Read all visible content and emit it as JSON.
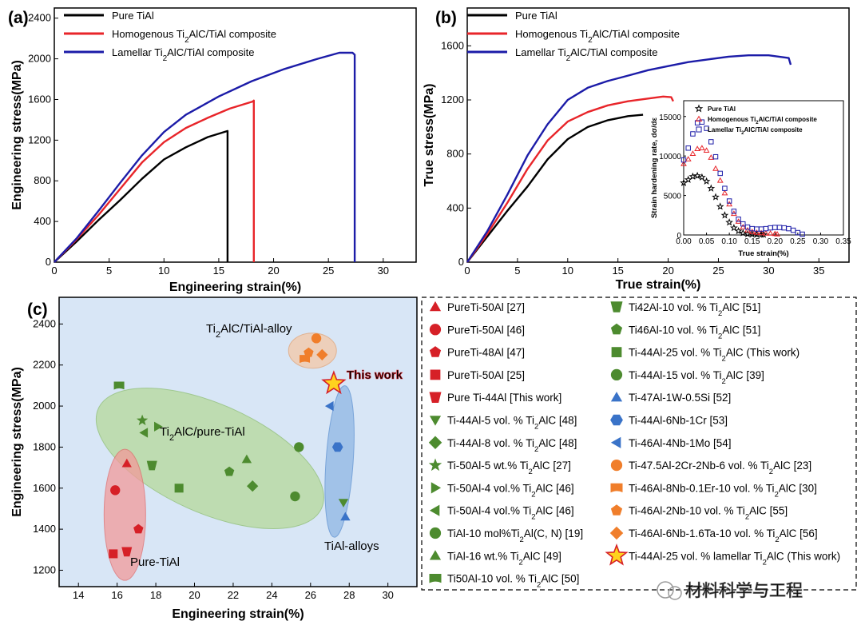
{
  "chart_data": [
    {
      "panel": "(a)",
      "type": "line",
      "xlabel": "Engineering strain(%)",
      "ylabel": "Engineering stress(MPa)",
      "xlim": [
        0,
        33
      ],
      "ylim": [
        0,
        2500
      ],
      "xticks": [
        "0",
        "5",
        "10",
        "15",
        "20",
        "25",
        "30"
      ],
      "yticks": [
        "0",
        "400",
        "800",
        "1200",
        "1600",
        "2000",
        "2400"
      ],
      "legend_position": "top-left",
      "series": [
        {
          "name": "Pure TiAl",
          "color": "#000000",
          "x": [
            0,
            2,
            4,
            6,
            8,
            10,
            12,
            14,
            15.8,
            15.8
          ],
          "y": [
            0,
            200,
            410,
            610,
            820,
            1010,
            1130,
            1230,
            1290,
            0
          ]
        },
        {
          "name": "Homogenous Ti₂AlC/TiAl composite",
          "color": "#e8252a",
          "x": [
            0,
            2,
            4,
            6,
            8,
            10,
            12,
            14,
            16,
            18.1,
            18.2,
            18.2
          ],
          "y": [
            0,
            220,
            460,
            720,
            980,
            1180,
            1320,
            1420,
            1510,
            1580,
            1590,
            0
          ]
        },
        {
          "name": "Lamellar Ti₂AlC/TiAl composite",
          "color": "#1c1ca8",
          "x": [
            0,
            2,
            4,
            6,
            8,
            10,
            12,
            15,
            18,
            21,
            24,
            26,
            27.2,
            27.4,
            27.4
          ],
          "y": [
            0,
            230,
            500,
            780,
            1050,
            1280,
            1450,
            1630,
            1780,
            1900,
            2000,
            2060,
            2060,
            2040,
            0
          ]
        }
      ]
    },
    {
      "panel": "(b)",
      "type": "line",
      "xlabel": "True strain(%)",
      "ylabel": "True stress(MPa)",
      "xlim": [
        0,
        38
      ],
      "ylim": [
        0,
        1880
      ],
      "xticks": [
        "0",
        "5",
        "10",
        "15",
        "20",
        "25",
        "30",
        "35"
      ],
      "yticks": [
        "0",
        "400",
        "800",
        "1200",
        "1600"
      ],
      "legend_position": "top-left",
      "series": [
        {
          "name": "Pure TiAl",
          "color": "#000000",
          "x": [
            0,
            2,
            4,
            6,
            8,
            10,
            12,
            14,
            16,
            17.5
          ],
          "y": [
            0,
            190,
            380,
            560,
            760,
            910,
            1000,
            1050,
            1080,
            1090
          ]
        },
        {
          "name": "Homogenous Ti₂AlC/TiAl composite",
          "color": "#e8252a",
          "x": [
            0,
            2,
            4,
            6,
            8,
            10,
            12,
            14,
            16,
            18,
            19.5,
            20.3,
            20.5
          ],
          "y": [
            0,
            210,
            440,
            690,
            900,
            1040,
            1110,
            1160,
            1190,
            1210,
            1225,
            1220,
            1190
          ]
        },
        {
          "name": "Lamellar Ti₂AlC/TiAl composite",
          "color": "#1c1ca8",
          "x": [
            0,
            2,
            4,
            6,
            8,
            10,
            12,
            14,
            16,
            18,
            20,
            22,
            24,
            26,
            28,
            30,
            32,
            32.2
          ],
          "y": [
            0,
            230,
            500,
            790,
            1020,
            1200,
            1290,
            1340,
            1380,
            1420,
            1450,
            1480,
            1500,
            1520,
            1530,
            1530,
            1510,
            1460
          ]
        }
      ],
      "inset": {
        "type": "scatter",
        "xlabel": "True strain(%)",
        "ylabel": "Strain hardening rate, dσ/dε",
        "xlim": [
          0,
          0.35
        ],
        "ylim": [
          0,
          17000
        ],
        "xticks": [
          "0.00",
          "0.05",
          "0.10",
          "0.15",
          "0.20",
          "0.25",
          "0.30",
          "0.35"
        ],
        "yticks": [
          "0",
          "5000",
          "10000",
          "15000"
        ],
        "series": [
          {
            "name": "Pure TiAl",
            "color": "#000000",
            "marker": "star",
            "x": [
              0.0,
              0.01,
              0.02,
              0.03,
              0.04,
              0.05,
              0.06,
              0.07,
              0.08,
              0.09,
              0.1,
              0.11,
              0.12,
              0.13,
              0.14,
              0.15,
              0.16,
              0.17,
              0.175
            ],
            "y": [
              6600,
              7000,
              7400,
              7500,
              7300,
              6800,
              5900,
              4800,
              3600,
              2500,
              1600,
              900,
              500,
              250,
              120,
              80,
              60,
              40,
              40
            ]
          },
          {
            "name": "Homogenous Ti₂AlC/TiAl composite",
            "color": "#e8252a",
            "marker": "triangle",
            "x": [
              0.0,
              0.01,
              0.02,
              0.03,
              0.04,
              0.05,
              0.06,
              0.07,
              0.08,
              0.09,
              0.1,
              0.11,
              0.12,
              0.13,
              0.14,
              0.15,
              0.16,
              0.17,
              0.18,
              0.19,
              0.2,
              0.205
            ],
            "y": [
              9000,
              9600,
              10300,
              10900,
              11000,
              10700,
              9800,
              8400,
              6900,
              5300,
              3900,
              2700,
              1700,
              1000,
              600,
              400,
              300,
              250,
              200,
              200,
              150,
              100
            ]
          },
          {
            "name": "Lamellar Ti₂AlC/TiAl composite",
            "color": "#1c1ca8",
            "marker": "square",
            "x": [
              0.0,
              0.01,
              0.02,
              0.03,
              0.04,
              0.05,
              0.06,
              0.07,
              0.08,
              0.09,
              0.1,
              0.11,
              0.12,
              0.13,
              0.14,
              0.15,
              0.16,
              0.17,
              0.18,
              0.19,
              0.2,
              0.21,
              0.22,
              0.23,
              0.24,
              0.25,
              0.26
            ],
            "y": [
              9500,
              11000,
              12800,
              14200,
              14300,
              13500,
              11800,
              9900,
              7800,
              5900,
              4300,
              3000,
              2000,
              1400,
              1000,
              800,
              750,
              750,
              800,
              900,
              950,
              950,
              900,
              800,
              600,
              300,
              100
            ]
          }
        ]
      }
    },
    {
      "panel": "(c)",
      "type": "scatter",
      "xlabel": "Engineering strain(%)",
      "ylabel": "Engineering stress(MPa)",
      "xlim": [
        13,
        31.5
      ],
      "ylim": [
        1120,
        2530
      ],
      "xticks": [
        "14",
        "16",
        "18",
        "20",
        "22",
        "24",
        "26",
        "28",
        "30"
      ],
      "yticks": [
        "1200",
        "1400",
        "1600",
        "1800",
        "2000",
        "2200",
        "2400"
      ],
      "group_labels": [
        "Ti₂AlC/TiAl-alloy",
        "Ti₂AlC/pure-TiAl",
        "Pure-TiAl",
        "TiAl-alloys",
        "This work"
      ],
      "points": [
        {
          "label": "PureTi-50Al  [27]",
          "shape": "triangle",
          "color": "#d62027",
          "x": 16.5,
          "y": 1720
        },
        {
          "label": "PureTi-50Al  [46]",
          "shape": "circle",
          "color": "#d62027",
          "x": 15.9,
          "y": 1590
        },
        {
          "label": "PureTi-48Al  [47]",
          "shape": "pentagon",
          "color": "#d62027",
          "x": 17.1,
          "y": 1400
        },
        {
          "label": "PureTi-50Al  [25]",
          "shape": "square",
          "color": "#d62027",
          "x": 15.8,
          "y": 1280
        },
        {
          "label": "Pure Ti-44Al [This work]",
          "shape": "trapezoid-down",
          "color": "#d62027",
          "x": 16.5,
          "y": 1290
        },
        {
          "label": "Ti-44Al-5 vol. % Ti₂AlC  [48]",
          "shape": "triangle-down",
          "color": "#4d8b2f",
          "x": 27.7,
          "y": 1530
        },
        {
          "label": "Ti-44Al-8 vol. % Ti₂AlC  [48]",
          "shape": "diamond",
          "color": "#4d8b2f",
          "x": 23.0,
          "y": 1610
        },
        {
          "label": "Ti-50Al-5 wt.% Ti₂AlC  [27]",
          "shape": "star",
          "color": "#4d8b2f",
          "x": 17.3,
          "y": 1930
        },
        {
          "label": "Ti-50Al-4 vol.% Ti₂AlC  [46]",
          "shape": "triangle-right",
          "color": "#4d8b2f",
          "x": 18.1,
          "y": 1900
        },
        {
          "label": "Ti-50Al-4 vol.% Ti₂AlC  [46]",
          "shape": "triangle-left",
          "color": "#4d8b2f",
          "x": 17.4,
          "y": 1870
        },
        {
          "label": "TiAl-10 mol%Ti₂Al(C, N)  [19]",
          "shape": "circle",
          "color": "#4d8b2f",
          "x": 25.4,
          "y": 1800
        },
        {
          "label": "TiAl-16 wt.% Ti₂AlC  [49]",
          "shape": "triangle",
          "color": "#4d8b2f",
          "x": 22.7,
          "y": 1740
        },
        {
          "label": "Ti50Al-10 vol. % Ti₂AlC  [50]",
          "shape": "flag",
          "color": "#4d8b2f",
          "x": 16.1,
          "y": 2100
        },
        {
          "label": "Ti42Al-10 vol. % Ti₂AlC  [51]",
          "shape": "trapezoid-down",
          "color": "#4d8b2f",
          "x": 17.8,
          "y": 1710
        },
        {
          "label": "Ti46Al-10 vol. % Ti₂AlC  [51]",
          "shape": "pentagon",
          "color": "#4d8b2f",
          "x": 21.8,
          "y": 1680
        },
        {
          "label": "Ti-44Al-25 vol. % Ti₂AlC (This work)",
          "shape": "square",
          "color": "#4d8b2f",
          "x": 19.2,
          "y": 1600
        },
        {
          "label": "Ti-44Al-15 vol. % Ti₂AlC [39]",
          "shape": "circle",
          "color": "#4d8b2f",
          "x": 25.2,
          "y": 1560
        },
        {
          "label": "Ti-47Al-1W-0.5Si  [52]",
          "shape": "triangle",
          "color": "#3a73c8",
          "x": 27.8,
          "y": 1460
        },
        {
          "label": "Ti-44Al-6Nb-1Cr  [53]",
          "shape": "hexagon",
          "color": "#3a73c8",
          "x": 27.4,
          "y": 1800
        },
        {
          "label": "Ti-46Al-4Nb-1Mo  [54]",
          "shape": "triangle-left",
          "color": "#3a73c8",
          "x": 27.0,
          "y": 2000
        },
        {
          "label": "Ti-47.5Al-2Cr-2Nb-6 vol. % Ti₂AlC  [23]",
          "shape": "circle",
          "color": "#f07e2b",
          "x": 26.3,
          "y": 2330
        },
        {
          "label": "Ti-46Al-8Nb-0.1Er-10 vol. % Ti₂AlC  [30]",
          "shape": "flag",
          "color": "#f07e2b",
          "x": 25.7,
          "y": 2230
        },
        {
          "label": "Ti-46Al-2Nb-10 vol. % Ti₂AlC  [55]",
          "shape": "pentagon",
          "color": "#f07e2b",
          "x": 25.9,
          "y": 2260
        },
        {
          "label": "Ti-46Al-6Nb-1.6Ta-10 vol. % Ti₂AlC  [56]",
          "shape": "diamond",
          "color": "#f07e2b",
          "x": 26.6,
          "y": 2250
        },
        {
          "label": "Ti-44Al-25 vol. % lamellar Ti₂AlC (This work)",
          "shape": "big-star",
          "color": "#ffd21e",
          "x": 27.2,
          "y": 2110
        }
      ]
    }
  ],
  "watermark": "材料科学与工程"
}
